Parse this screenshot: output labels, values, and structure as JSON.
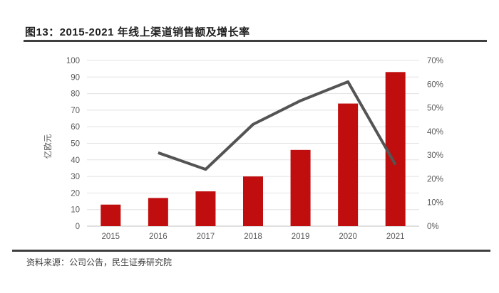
{
  "header": {
    "title": "图13：2015-2021 年线上渠道销售额及增长率"
  },
  "footer": {
    "source": "资料来源：公司公告，民生证券研究院"
  },
  "theme": {
    "bar_color": "#c00d0d",
    "line_color": "#545454",
    "grid_color": "#e2e2e2",
    "axis_line_color": "#c0c0c0",
    "tick_text_color": "#595959",
    "rule_color": "#3f3f3f"
  },
  "chart_data": {
    "type": "bar",
    "subtype": "combo-bar-line",
    "title": "图13：2015-2021 年线上渠道销售额及增长率",
    "categories": [
      "2015",
      "2016",
      "2017",
      "2018",
      "2019",
      "2020",
      "2021"
    ],
    "series": [
      {
        "name": "线上渠道销售额",
        "type": "bar",
        "axis": "left",
        "values": [
          13,
          17,
          21,
          30,
          46,
          74,
          93
        ]
      },
      {
        "name": "增长率",
        "type": "line",
        "axis": "right",
        "values": [
          null,
          31,
          24,
          43,
          53,
          61,
          26
        ]
      }
    ],
    "left_axis": {
      "label": "亿欧元",
      "min": 0,
      "max": 100,
      "step": 10
    },
    "right_axis": {
      "label": "",
      "min": 0,
      "max": 70,
      "step": 10,
      "suffix": "%"
    },
    "grid": true,
    "legend": false
  }
}
